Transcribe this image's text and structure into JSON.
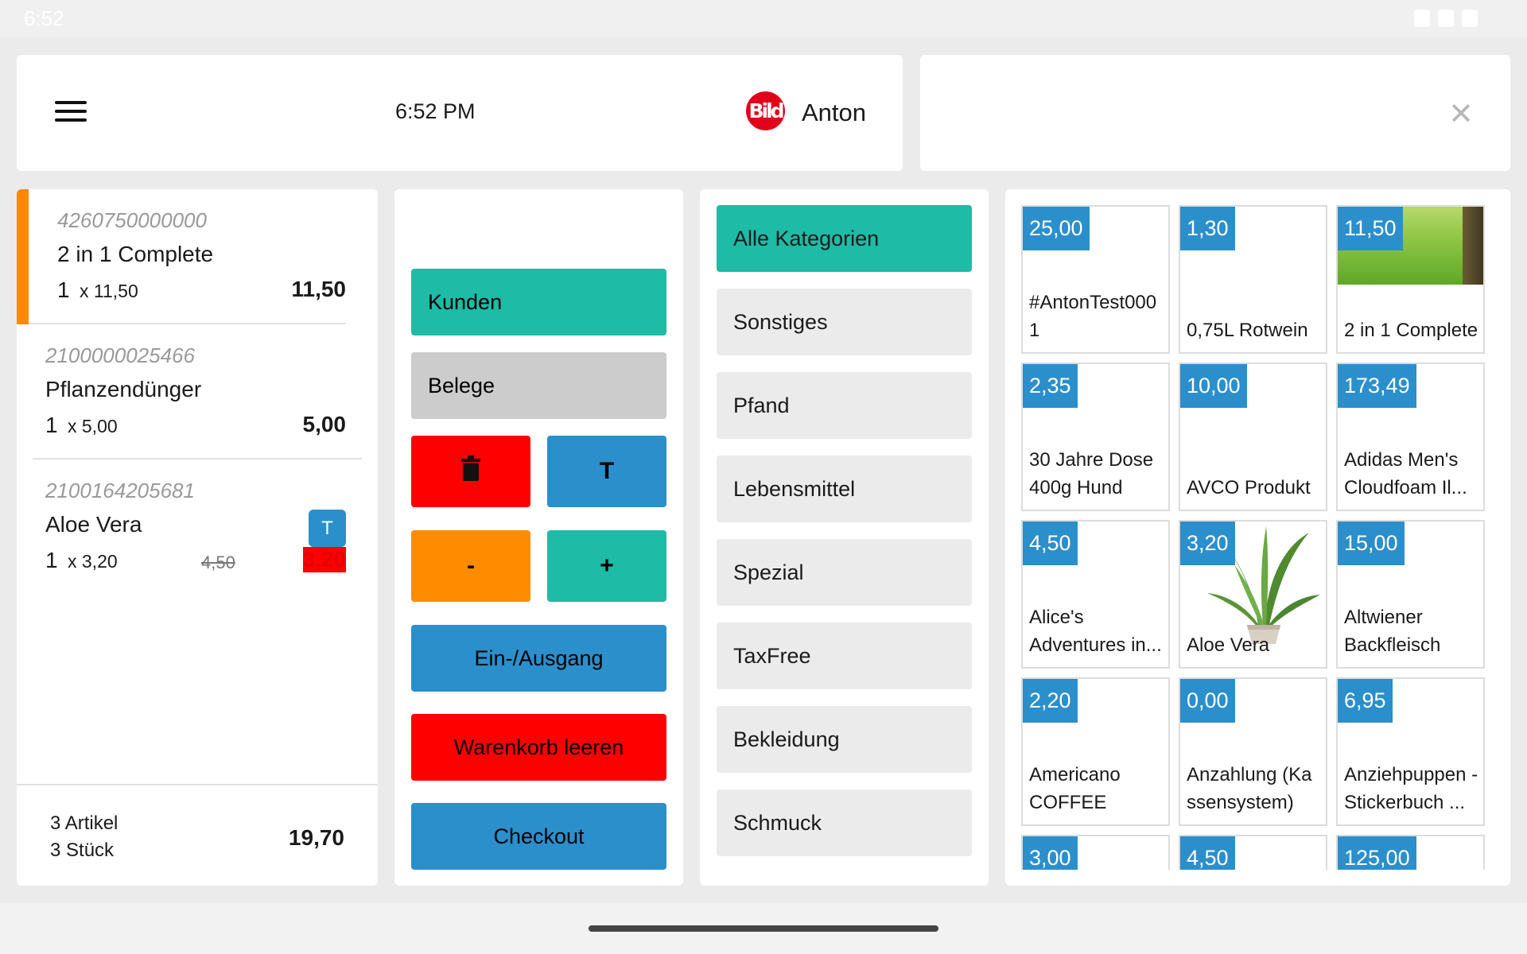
{
  "status_bar": {
    "time": "6:52"
  },
  "header": {
    "clock": "6:52 PM",
    "brand_logo": "Bild",
    "user": "Anton"
  },
  "search": {
    "placeholder": "",
    "value": ""
  },
  "cart": {
    "items": [
      {
        "ean": "4260750000000",
        "name": "2 in 1 Complete",
        "qty": "1",
        "unit": "x 11,50",
        "total": "11,50"
      },
      {
        "ean": "2100000025466",
        "name": "Pflanzendünger",
        "qty": "1",
        "unit": "x 5,00",
        "total": "5,00"
      },
      {
        "ean": "2100164205681",
        "name": "Aloe Vera",
        "qty": "1",
        "unit": "x 3,20",
        "old_price": "4,50",
        "total": "3,20",
        "badge": "T"
      }
    ],
    "summary": {
      "artikel": "3 Artikel",
      "stueck": "3 Stück",
      "total": "19,70"
    }
  },
  "actions": {
    "kunden": "Kunden",
    "belege": "Belege",
    "delete_icon": "trash-icon",
    "t_label": "T",
    "minus": "-",
    "plus": "+",
    "ein_ausgang": "Ein-/Ausgang",
    "warenkorb_leeren": "Warenkorb leeren",
    "checkout": "Checkout"
  },
  "categories": [
    "Alle Kategorien",
    "Sonstiges",
    "Pfand",
    "Lebensmittel",
    "Spezial",
    "TaxFree",
    "Bekleidung",
    "Schmuck"
  ],
  "products": [
    {
      "price": "25,00",
      "name": "#AntonTest0001"
    },
    {
      "price": "1,30",
      "name": "0,75L Rotwein"
    },
    {
      "price": "11,50",
      "name": "2 in 1 Complete",
      "image": "grass"
    },
    {
      "price": "2,35",
      "name": "30 Jahre Dose 400g Hund"
    },
    {
      "price": "10,00",
      "name": "AVCO Produkt"
    },
    {
      "price": "173,49",
      "name": "Adidas Men's Cloudfoam Il..."
    },
    {
      "price": "4,50",
      "name": "Alice's Adventures in..."
    },
    {
      "price": "3,20",
      "name": "Aloe Vera",
      "image": "aloe"
    },
    {
      "price": "15,00",
      "name": "Altwiener Backfleisch"
    },
    {
      "price": "2,20",
      "name": "Americano COFFEE"
    },
    {
      "price": "0,00",
      "name": "Anzahlung (Kassensystem)"
    },
    {
      "price": "6,95",
      "name": "Anziehpuppen -Stickerbuch ..."
    },
    {
      "price": "3,00",
      "name": ""
    },
    {
      "price": "4,50",
      "name": ""
    },
    {
      "price": "125,00",
      "name": ""
    }
  ],
  "colors": {
    "teal": "#1ebba6",
    "blue": "#2b8fcc",
    "red": "#ff0000",
    "orange": "#ff8c00",
    "grey": "#cccccc"
  }
}
